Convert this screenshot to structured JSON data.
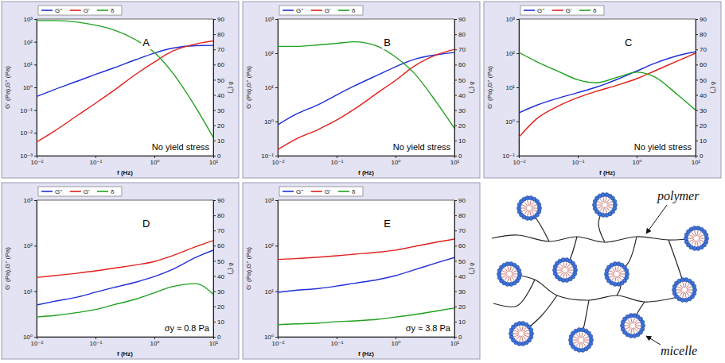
{
  "chart_data": [
    {
      "type": "line",
      "log": true,
      "legend": "top",
      "x": [
        0.01,
        0.02,
        0.05,
        0.1,
        0.2,
        0.5,
        1,
        2,
        5,
        10
      ],
      "xlim": [
        0.01,
        10
      ],
      "xticks": [
        {
          "value": 0.01,
          "label": "10⁻²"
        },
        {
          "value": 0.1,
          "label": "10⁻¹"
        },
        {
          "value": 1,
          "label": "10⁰"
        },
        {
          "value": 10,
          "label": "10¹"
        }
      ],
      "ylim": [
        0.001,
        1000
      ],
      "yticks": [
        {
          "value": 0.001,
          "label": "10⁻³"
        },
        {
          "value": 0.01,
          "label": "10⁻²"
        },
        {
          "value": 0.1,
          "label": "10⁻¹"
        },
        {
          "value": 1,
          "label": "10⁰"
        },
        {
          "value": 10,
          "label": "10¹"
        },
        {
          "value": 100,
          "label": "10²"
        },
        {
          "value": 1000,
          "label": "10³"
        }
      ],
      "y2lim": [
        0,
        90
      ],
      "y2ticks": [
        0,
        10,
        20,
        30,
        40,
        50,
        60,
        70,
        80,
        90
      ],
      "x_label": "f (Hz)",
      "y_label": "G' (Pa),G'' (Pa)",
      "y2_label": "δ (°)",
      "annotations": [
        "A",
        "No yield stress"
      ],
      "series": [
        {
          "name": "G''",
          "color": "#1f2fd6",
          "values": [
            0.4,
            0.8,
            1.9,
            3.7,
            7,
            17,
            32,
            52,
            68,
            70
          ]
        },
        {
          "name": "G'",
          "color": "#e0201c",
          "values": [
            0.004,
            0.012,
            0.06,
            0.2,
            0.7,
            4,
            13,
            38,
            80,
            110
          ]
        },
        {
          "name": "δ",
          "color": "#1fa01f",
          "axis": "y2",
          "values": [
            89,
            89,
            88,
            86,
            83,
            76,
            68,
            55,
            32,
            12
          ]
        }
      ]
    },
    {
      "type": "line",
      "log": true,
      "legend": "top",
      "x": [
        0.01,
        0.02,
        0.05,
        0.1,
        0.2,
        0.5,
        1,
        2,
        5,
        10
      ],
      "xlim": [
        0.01,
        10
      ],
      "xticks": [
        {
          "value": 0.01,
          "label": "10⁻²"
        },
        {
          "value": 0.1,
          "label": "10⁻¹"
        },
        {
          "value": 1,
          "label": "10⁰"
        },
        {
          "value": 10,
          "label": "10¹"
        }
      ],
      "ylim": [
        0.1,
        1000
      ],
      "yticks": [
        {
          "value": 0.1,
          "label": "10⁻¹"
        },
        {
          "value": 1,
          "label": "10⁰"
        },
        {
          "value": 10,
          "label": "10¹"
        },
        {
          "value": 100,
          "label": "10²"
        },
        {
          "value": 1000,
          "label": "10³"
        }
      ],
      "y2lim": [
        0,
        90
      ],
      "y2ticks": [
        0,
        10,
        20,
        30,
        40,
        50,
        60,
        70,
        80,
        90
      ],
      "x_label": "f (Hz)",
      "y_label": "G' (Pa),G'' (Pa)",
      "y2_label": "δ (°)",
      "annotations": [
        "B",
        "No yield stress"
      ],
      "series": [
        {
          "name": "G''",
          "color": "#1f2fd6",
          "values": [
            0.8,
            1.6,
            3.2,
            6,
            11,
            23,
            40,
            65,
            90,
            105
          ]
        },
        {
          "name": "G'",
          "color": "#e0201c",
          "values": [
            0.15,
            0.3,
            0.6,
            1.1,
            2.3,
            7,
            16,
            40,
            90,
            130
          ]
        },
        {
          "name": "δ",
          "color": "#1fa01f",
          "axis": "y2",
          "values": [
            72,
            72,
            73,
            74,
            75,
            72,
            65,
            55,
            35,
            18
          ]
        }
      ]
    },
    {
      "type": "line",
      "log": true,
      "legend": "top",
      "x": [
        0.01,
        0.02,
        0.05,
        0.1,
        0.2,
        0.5,
        1,
        2,
        5,
        10
      ],
      "xlim": [
        0.01,
        10
      ],
      "xticks": [
        {
          "value": 0.01,
          "label": "10⁻²"
        },
        {
          "value": 0.1,
          "label": "10⁻¹"
        },
        {
          "value": 1,
          "label": "10⁰"
        },
        {
          "value": 10,
          "label": "10¹"
        }
      ],
      "ylim": [
        0.1,
        1000
      ],
      "yticks": [
        {
          "value": 0.1,
          "label": "10⁻¹"
        },
        {
          "value": 1,
          "label": "10⁰"
        },
        {
          "value": 10,
          "label": "10¹"
        },
        {
          "value": 100,
          "label": "10²"
        },
        {
          "value": 1000,
          "label": "10³"
        }
      ],
      "y2lim": [
        0,
        90
      ],
      "y2ticks": [
        0,
        10,
        20,
        30,
        40,
        50,
        60,
        70,
        80,
        90
      ],
      "x_label": "f (Hz)",
      "y_label": "G' (Pa),G'' (Pa)",
      "y2_label": "δ (°)",
      "annotations": [
        "C",
        "No yield stress"
      ],
      "series": [
        {
          "name": "G''",
          "color": "#1f2fd6",
          "values": [
            1.8,
            3,
            5,
            7,
            10,
            18,
            30,
            50,
            85,
            110
          ]
        },
        {
          "name": "G'",
          "color": "#e0201c",
          "values": [
            0.35,
            1.2,
            3,
            5,
            7.5,
            12,
            18,
            30,
            60,
            100
          ]
        },
        {
          "name": "δ",
          "color": "#1fa01f",
          "axis": "y2",
          "values": [
            68,
            62,
            55,
            50,
            48,
            52,
            55,
            52,
            40,
            30
          ]
        }
      ]
    },
    {
      "type": "line",
      "log": true,
      "legend": "top",
      "x": [
        0.01,
        0.02,
        0.05,
        0.1,
        0.2,
        0.5,
        1,
        2,
        5,
        10
      ],
      "xlim": [
        0.01,
        10
      ],
      "xticks": [
        {
          "value": 0.01,
          "label": "10⁻²"
        },
        {
          "value": 0.1,
          "label": "10⁻¹"
        },
        {
          "value": 1,
          "label": "10⁰"
        },
        {
          "value": 10,
          "label": "10¹"
        }
      ],
      "ylim": [
        1,
        1000
      ],
      "yticks": [
        {
          "value": 1,
          "label": "10⁰"
        },
        {
          "value": 10,
          "label": "10¹"
        },
        {
          "value": 100,
          "label": "10²"
        },
        {
          "value": 1000,
          "label": "10³"
        }
      ],
      "y2lim": [
        0,
        90
      ],
      "y2ticks": [
        0,
        10,
        20,
        30,
        40,
        50,
        60,
        70,
        80,
        90
      ],
      "x_label": "f (Hz)",
      "y_label": "G' (Pa),G'' (Pa)",
      "y2_label": "δ (°)",
      "annotations": [
        "D",
        "σy ≈ 0.8 Pa"
      ],
      "series": [
        {
          "name": "G''",
          "color": "#1f2fd6",
          "values": [
            5,
            6,
            7.5,
            9.5,
            12,
            16,
            21,
            30,
            55,
            80
          ]
        },
        {
          "name": "G'",
          "color": "#e0201c",
          "values": [
            20,
            22,
            25,
            28,
            32,
            38,
            45,
            60,
            95,
            130
          ]
        },
        {
          "name": "δ",
          "color": "#1fa01f",
          "axis": "y2",
          "values": [
            13,
            14,
            16,
            18,
            21,
            25,
            29,
            33,
            35,
            28
          ]
        }
      ]
    },
    {
      "type": "line",
      "log": true,
      "legend": "top",
      "x": [
        0.01,
        0.02,
        0.05,
        0.1,
        0.2,
        0.5,
        1,
        2,
        5,
        10
      ],
      "xlim": [
        0.01,
        10
      ],
      "xticks": [
        {
          "value": 0.01,
          "label": "10⁻²"
        },
        {
          "value": 0.1,
          "label": "10⁻¹"
        },
        {
          "value": 1,
          "label": "10⁰"
        },
        {
          "value": 10,
          "label": "10¹"
        }
      ],
      "ylim": [
        1,
        1000
      ],
      "yticks": [
        {
          "value": 1,
          "label": "10⁰"
        },
        {
          "value": 10,
          "label": "10¹"
        },
        {
          "value": 100,
          "label": "10²"
        },
        {
          "value": 1000,
          "label": "10³"
        }
      ],
      "y2lim": [
        0,
        90
      ],
      "y2ticks": [
        0,
        10,
        20,
        30,
        40,
        50,
        60,
        70,
        80,
        90
      ],
      "x_label": "f (Hz)",
      "y_label": "G' (Pa),G'' (Pa)",
      "y2_label": "δ (°)",
      "annotations": [
        "E",
        "σy ≈ 3.8 Pa"
      ],
      "series": [
        {
          "name": "G''",
          "color": "#1f2fd6",
          "values": [
            9.5,
            10.5,
            11.5,
            13,
            15,
            18,
            22,
            29,
            42,
            55
          ]
        },
        {
          "name": "G'",
          "color": "#e0201c",
          "values": [
            50,
            52,
            56,
            60,
            65,
            72,
            80,
            95,
            120,
            140
          ]
        },
        {
          "name": "δ",
          "color": "#1fa01f",
          "axis": "y2",
          "values": [
            8,
            8.5,
            9,
            10,
            10.5,
            11.5,
            13,
            14.5,
            17,
            19
          ]
        }
      ]
    }
  ],
  "diagram": {
    "polymer_label": "polymer",
    "micelle_label": "micelle"
  }
}
